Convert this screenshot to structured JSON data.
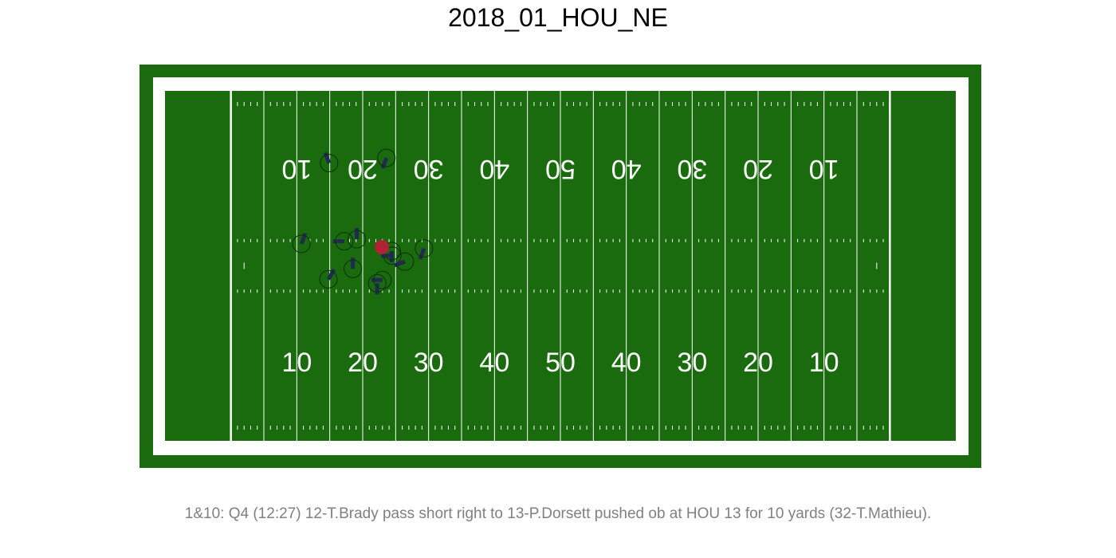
{
  "title": "2018_01_HOU_NE",
  "caption": "1&10: Q4 (12:27) 12-T.Brady pass short right to 13-P.Dorsett pushed ob at HOU 13 for 10 yards (32-T.Mathieu).",
  "colors": {
    "turf": "#1a6b0e",
    "lines": "#ffffff",
    "player_ring": "#0c2e0c",
    "player_text": "#c0392b",
    "heading_bar": "#1f2b4f",
    "ball": "#b22234"
  },
  "field": {
    "yard_numbers_bottom": [
      "10",
      "20",
      "30",
      "40",
      "50",
      "40",
      "30",
      "20",
      "10"
    ],
    "yard_numbers_top": [
      "10",
      "20",
      "30",
      "40",
      "50",
      "40",
      "30",
      "20",
      "10"
    ]
  },
  "chart_data": {
    "type": "scatter",
    "title": "2018_01_HOU_NE",
    "xlabel": "",
    "ylabel": "",
    "x_unit": "field yards from left end line (0-120)",
    "y_unit": "field yards from bottom sideline (0-53.3)",
    "xlim": [
      0,
      120
    ],
    "ylim": [
      0,
      53.3
    ],
    "ball": {
      "x": 32.9,
      "y": 29.5
    },
    "players": [
      {
        "x": 24.9,
        "y": 42.3,
        "dir": 110
      },
      {
        "x": 33.6,
        "y": 43.1,
        "dir": 250
      },
      {
        "x": 20.7,
        "y": 30.0,
        "dir": 70
      },
      {
        "x": 27.2,
        "y": 30.4,
        "dir": 180
      },
      {
        "x": 29.1,
        "y": 30.7,
        "dir": 90
      },
      {
        "x": 34.4,
        "y": 28.9,
        "dir": 270
      },
      {
        "x": 34.5,
        "y": 28.2,
        "dir": 180
      },
      {
        "x": 39.3,
        "y": 29.3,
        "dir": 250
      },
      {
        "x": 36.4,
        "y": 27.3,
        "dir": 200
      },
      {
        "x": 24.8,
        "y": 24.6,
        "dir": 60
      },
      {
        "x": 28.5,
        "y": 26.2,
        "dir": 90
      },
      {
        "x": 32.2,
        "y": 24.0,
        "dir": 270
      },
      {
        "x": 33.0,
        "y": 24.5,
        "dir": 180
      }
    ]
  }
}
